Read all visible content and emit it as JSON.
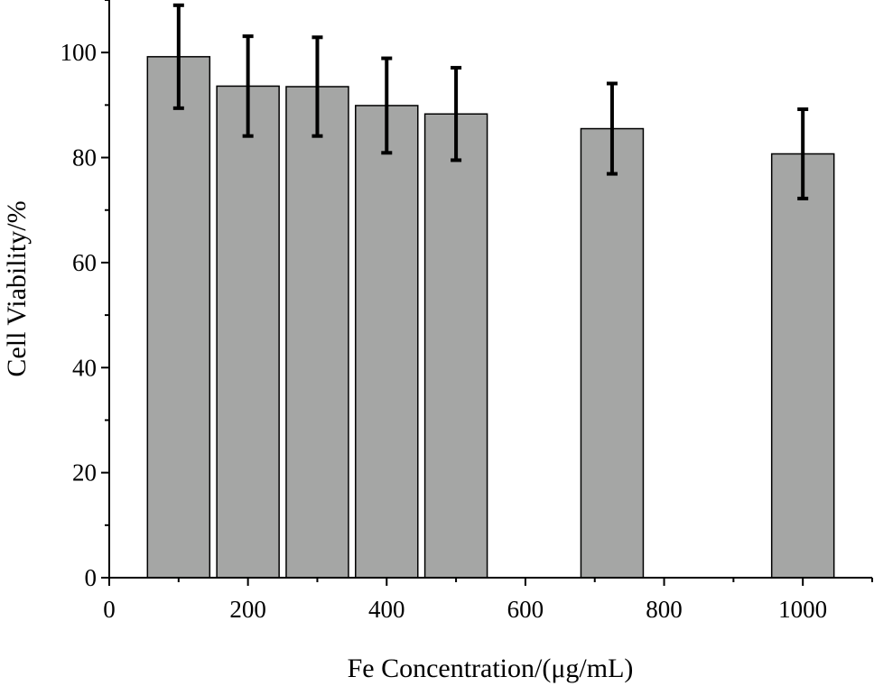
{
  "chart_data": {
    "type": "bar",
    "x": [
      100,
      200,
      300,
      400,
      500,
      725,
      1000
    ],
    "values": [
      99.2,
      93.6,
      93.5,
      89.9,
      88.3,
      85.5,
      80.7
    ],
    "error": [
      9.8,
      9.5,
      9.4,
      9.0,
      8.8,
      8.6,
      8.5
    ],
    "xlabel": "Fe Concentration/(μg/mL)",
    "ylabel": "Cell Viability/%",
    "xlim": [
      0,
      1100
    ],
    "ylim": [
      0,
      110
    ],
    "xticks": [
      0,
      200,
      400,
      600,
      800,
      1000
    ],
    "xtick_labels": [
      "0",
      "200",
      "400",
      "600",
      "800",
      "1000"
    ],
    "yticks": [
      0,
      20,
      40,
      60,
      80,
      100
    ],
    "ytick_labels": [
      "0",
      "20",
      "40",
      "60",
      "80",
      "100"
    ],
    "bar_color": "#a5a6a5",
    "grid": false,
    "legend": "none"
  }
}
